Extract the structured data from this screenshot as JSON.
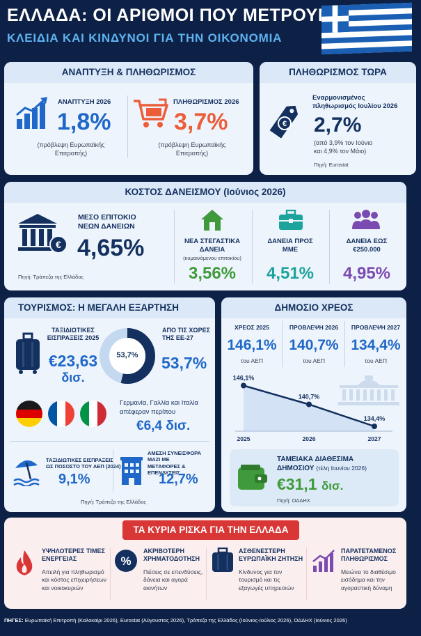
{
  "header": {
    "title": "ΕΛΛΑΔΑ: ΟΙ ΑΡΙΘΜΟΙ ΠΟΥ ΜΕΤΡΟΥΝ",
    "subtitle": "ΚΛΕΙΔΙΑ ΚΑΙ ΚΙΝΔΥΝΟΙ ΓΙΑ ΤΗΝ ΟΙΚΟΝΟΜΙΑ"
  },
  "growth": {
    "title": "ΑΝΑΠΤΥΞΗ & ΠΛΗΘΩΡΙΣΜΟΣ",
    "growth_label": "ΑΝΑΠΤΥΞΗ 2026",
    "growth_value": "1,8%",
    "growth_note_1": "(πρόβλεψη Ευρωπαϊκής",
    "growth_note_2": "Επιτροπής)",
    "inflation_label": "ΠΛΗΘΩΡΙΣΜΟΣ 2026",
    "inflation_value": "3,7%",
    "inflation_note_1": "(πρόβλεψη Ευρωπαϊκής",
    "inflation_note_2": "Επιτροπής)"
  },
  "inflation_now": {
    "title": "ΠΛΗΘΩΡΙΣΜΟΣ ΤΩΡΑ",
    "label_1": "Εναρμονισμένος",
    "label_2": "πληθωρισμός Ιουλίου 2026",
    "value": "2,7%",
    "note_1": "(από 3,9% τον Ιούνιο",
    "note_2": "και 4,9% τον Μάιο)",
    "source": "Πηγή: Eurostat"
  },
  "borrowing": {
    "title": "ΚΟΣΤΟΣ ΔΑΝΕΙΣΜΟΥ (Ιούνιος 2026)",
    "avg_label_1": "ΜΕΣΟ ΕΠΙΤΟΚΙΟ",
    "avg_label_2": "ΝΕΩΝ ΔΑΝΕΙΩΝ",
    "avg_value": "4,65%",
    "source": "Πηγή: Τράπεζα της Ελλάδος",
    "housing_label_1": "ΝΕΑ ΣΤΕΓΑΣΤΙΚΑ",
    "housing_label_2": "ΔΑΝΕΙΑ",
    "housing_note": "(κυμαινόμενου επιτοκίου)",
    "housing_value": "3,56%",
    "sme_label_1": "ΔΑΝΕΙΑ ΠΡΟΣ",
    "sme_label_2": "ΜΜΕ",
    "sme_value": "4,51%",
    "small_label_1": "ΔΑΝΕΙΑ ΕΩΣ",
    "small_label_2": "€250.000",
    "small_value": "4,95%",
    "colors": {
      "housing": "#3f9a3c",
      "sme": "#1ba39c",
      "small": "#7a4bb0"
    }
  },
  "tourism": {
    "title": "ΤΟΥΡΙΣΜΟΣ: Η ΜΕΓΑΛΗ ΕΞΑΡΤΗΣΗ",
    "receipts_label_1": "ΤΑΞΙΔΙΩΤΙΚΕΣ",
    "receipts_label_2": "ΕΙΣΠΡΑΞΕΙΣ 2025",
    "receipts_value": "€23,63",
    "receipts_unit": "δισ.",
    "donut_label": "53,7%",
    "donut_fraction": 0.537,
    "eu_label_1": "ΑΠΟ ΤΙΣ ΧΩΡΕΣ",
    "eu_label_2": "ΤΗΣ ΕΕ-27",
    "eu_value": "53,7%",
    "countries_text_1": "Γερμανία, Γαλλία και Ιταλία",
    "countries_text_2": "απέφεραν περίπου",
    "countries_value": "€6,4 δισ.",
    "gdp_label_1": "ΤΑΞΙΔΙΩΤΙΚΕΣ ΕΙΣΠΡΑΞΕΙΣ",
    "gdp_label_2": "ΩΣ ΠΟΣΟΣΤΟ ΤΟΥ ΑΕΠ (2024)",
    "gdp_value": "9,1%",
    "direct_label_1": "ΑΜΕΣΗ ΣΥΝΕΙΣΦΟΡΑ ΜΑΖΙ ΜΕ",
    "direct_label_2": "ΜΕΤΑΦΟΡΕΣ & ΕΠΕΝΔΥΣΕΙΣ",
    "direct_value": "12,7%",
    "source": "Πηγή: Τράπεζα της Ελλάδος"
  },
  "debt": {
    "title": "ΔΗΜΟΣΙΟ ΧΡΕΟΣ",
    "col1_label": "ΧΡΕΟΣ 2025",
    "col1_value": "146,1%",
    "col2_label": "ΠΡΟΒΛΕΨΗ 2026",
    "col2_value": "140,7%",
    "col3_label": "ΠΡΟΒΛΕΨΗ 2027",
    "col3_value": "134,4%",
    "unit_note": "του ΑΕΠ",
    "cash_label_1": "ΤΑΜΕΙΑΚΑ ΔΙΑΘΕΣΙΜΑ",
    "cash_label_2": "ΔΗΜΟΣΙΟΥ",
    "cash_note": "(τέλη Ιουνίου 2026)",
    "cash_value": "€31,1",
    "cash_unit": "δισ.",
    "source": "Πηγή: ΟΔΔΗΧ"
  },
  "chart_data": {
    "type": "line",
    "x": [
      "2025",
      "2026",
      "2027"
    ],
    "values": [
      146.1,
      140.7,
      134.4
    ],
    "data_labels": [
      "146,1%",
      "140,7%",
      "134,4%"
    ],
    "ylim": [
      125,
      150
    ],
    "grid": false
  },
  "risks": {
    "title": "ΤΑ ΚΥΡΙΑ ΡΙΣΚΑ ΓΙΑ ΤΗΝ ΕΛΛΑΔΑ",
    "items": [
      {
        "title_1": "ΥΨΗΛΟΤΕΡΕΣ ΤΙΜΕΣ",
        "title_2": "ΕΝΕΡΓΕΙΑΣ",
        "text_1": "Απειλή για πληθωρισμό",
        "text_2": "και κόστος επιχειρήσεων",
        "text_3": "και νοικοκυριών",
        "icon": "flame-icon"
      },
      {
        "title_1": "ΑΚΡΙΒΟΤΕΡΗ",
        "title_2": "ΧΡΗΜΑΤΟΔΟΤΗΣΗ",
        "text_1": "Πιέσεις σε επενδύσεις,",
        "text_2": "δάνεια και αγορά",
        "text_3": "ακινήτων",
        "icon": "percent-icon"
      },
      {
        "title_1": "ΑΣΘΕΝΕΣΤΕΡΗ",
        "title_2": "ΕΥΡΩΠΑΪΚΗ ΖΗΤΗΣΗ",
        "text_1": "Κίνδυνος για τον",
        "text_2": "τουρισμό και τις",
        "text_3": "εξαγωγές υπηρεσιών",
        "icon": "suitcase-icon"
      },
      {
        "title_1": "ΠΑΡΑΤΕΤΑΜΕΝΟΣ",
        "title_2": "ΠΛΗΘΩΡΙΣΜΟΣ",
        "text_1": "Μειώνει το διαθέσιμο",
        "text_2": "εισόδημα και την",
        "text_3": "αγοραστική δύναμη",
        "icon": "rising-chart-icon"
      }
    ]
  },
  "footer": {
    "label": "ΠΗΓΕΣ:",
    "text": " Ευρωπαϊκή Επιτροπή (Καλοκαίρι 2026), Eurostat (Αύγουστος 2026), Τράπεζα της Ελλάδος (Ιούνιος-Ιούλιος 2026), ΟΔΔΗΧ (Ιούνιος 2026)"
  }
}
